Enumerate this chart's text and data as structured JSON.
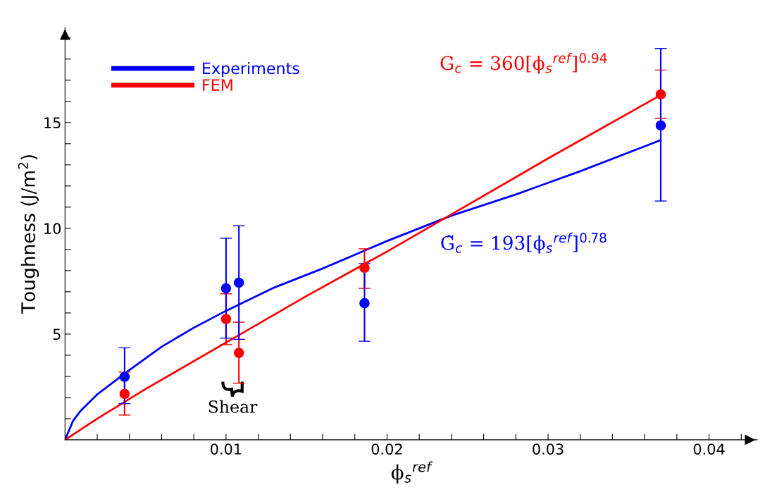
{
  "chart_data": {
    "type": "scatter",
    "xlabel": "ϕ$_{s}$$^{ref}$",
    "ylabel": "Toughness (J/m$^{2}$)",
    "xlim": [
      0,
      0.043
    ],
    "ylim": [
      0,
      19.5
    ],
    "xticks": [
      {
        "value": 0.002,
        "label": null
      },
      {
        "value": 0.004,
        "label": null
      },
      {
        "value": 0.006,
        "label": null
      },
      {
        "value": 0.008,
        "label": null
      },
      0.01,
      {
        "value": 0.012,
        "label": null
      },
      {
        "value": 0.014,
        "label": null
      },
      {
        "value": 0.016,
        "label": null
      },
      {
        "value": 0.018,
        "label": null
      },
      0.02,
      {
        "value": 0.022,
        "label": null
      },
      {
        "value": 0.024,
        "label": null
      },
      {
        "value": 0.026,
        "label": null
      },
      {
        "value": 0.028,
        "label": null
      },
      0.03,
      {
        "value": 0.032,
        "label": null
      },
      {
        "value": 0.034,
        "label": null
      },
      {
        "value": 0.036,
        "label": null
      },
      {
        "value": 0.038,
        "label": null
      },
      0.04,
      {
        "value": 0.042,
        "label": null
      }
    ],
    "yticks": [
      {
        "value": 1,
        "label": null
      },
      {
        "value": 2,
        "label": null
      },
      {
        "value": 3,
        "label": null
      },
      {
        "value": 4,
        "label": null
      },
      5,
      {
        "value": 6,
        "label": null
      },
      {
        "value": 7,
        "label": null
      },
      {
        "value": 8,
        "label": null
      },
      {
        "value": 9,
        "label": null
      },
      10,
      {
        "value": 11,
        "label": null
      },
      {
        "value": 12,
        "label": null
      },
      {
        "value": 13,
        "label": null
      },
      {
        "value": 14,
        "label": null
      },
      15,
      {
        "value": 16,
        "label": null
      },
      {
        "value": 17,
        "label": null
      },
      {
        "value": 18,
        "label": null
      },
      {
        "value": 19,
        "label": null
      }
    ],
    "grid": false,
    "legend": "top left",
    "series": [
      {
        "type": "line",
        "color": "#0000ff",
        "marker": "none",
        "line_style": "solid",
        "x": [
          0,
          0.0005,
          0.001,
          0.002,
          0.004,
          0.006,
          0.008,
          0.01,
          0.013,
          0.016,
          0.02,
          0.024,
          0.028,
          0.032,
          0.037
        ],
        "values": [
          0,
          0.9,
          1.4,
          2.15,
          3.3,
          4.4,
          5.3,
          6.1,
          7.2,
          8.1,
          9.4,
          10.6,
          11.6,
          12.7,
          14.17
        ]
      },
      {
        "type": "line",
        "color": "#ff0000",
        "marker": "none",
        "line_style": "solid",
        "x": [
          0,
          0.002,
          0.005,
          0.01,
          0.015,
          0.02,
          0.025,
          0.03,
          0.037
        ],
        "values": [
          0,
          1.0,
          2.4,
          4.6,
          6.8,
          8.9,
          11.1,
          13.3,
          16.3
        ]
      },
      {
        "name": "FEM",
        "color": "#ff0000",
        "marker": "circle",
        "x": [
          0.0037,
          0.01,
          0.0108,
          0.0186,
          0.037
        ],
        "values": [
          2.17,
          5.71,
          4.11,
          8.13,
          16.33
        ],
        "errors": [
          [
            1.17,
            3.2
          ],
          [
            4.5,
            6.9
          ],
          [
            2.68,
            5.56
          ],
          [
            7.16,
            9.03
          ],
          [
            15.2,
            17.48
          ]
        ]
      },
      {
        "name": "Experiments",
        "color": "#0000ff",
        "marker": "circle",
        "x": [
          0.0037,
          0.01,
          0.0108,
          0.0186,
          0.037
        ],
        "values": [
          2.98,
          7.16,
          7.43,
          6.46,
          14.86
        ],
        "errors": [
          [
            1.71,
            4.35
          ],
          [
            4.81,
            9.53
          ],
          [
            4.75,
            10.12
          ],
          [
            4.66,
            8.33
          ],
          [
            11.29,
            18.5
          ]
        ]
      }
    ],
    "annotations": [
      "G$_{c}$ = 360[ϕ$_{s}$$^{ref}$]$^{0.94}$",
      "G̃$_{c}$ = 193[ϕ$_{s}$$^{ref}$]$^{0.78}$",
      "Shear"
    ]
  }
}
